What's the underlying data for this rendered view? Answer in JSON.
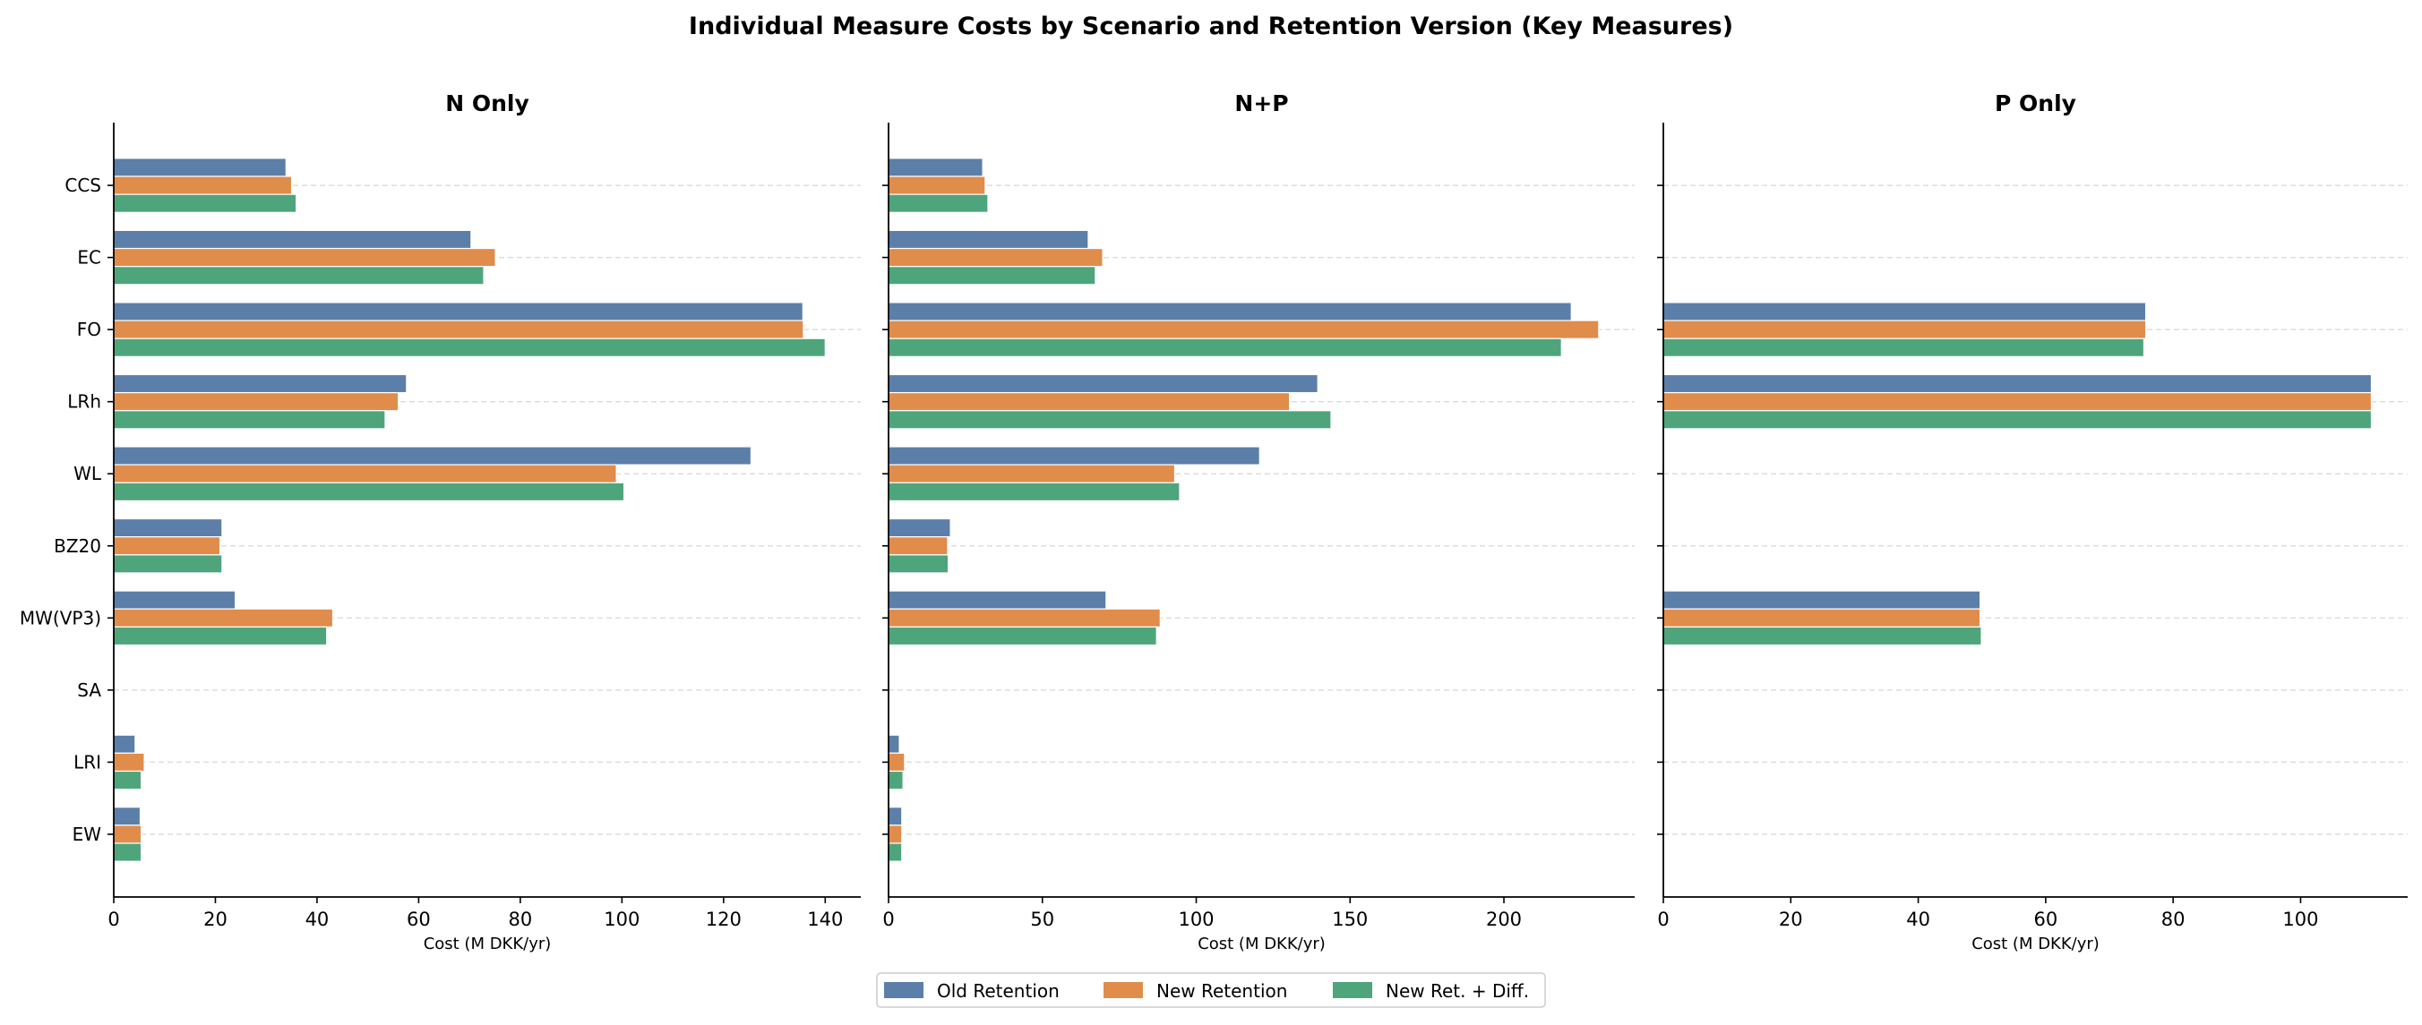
{
  "chart_data": {
    "type": "bar",
    "orientation": "horizontal",
    "title": "Individual Measure Costs by Scenario and Retention Version (Key Measures)",
    "categories": [
      "CCS",
      "EC",
      "FO",
      "LRh",
      "WL",
      "BZ20",
      "MW(VP3)",
      "SA",
      "LRI",
      "EW"
    ],
    "legend": {
      "placement": "bottom-center",
      "entries": [
        "Old Retention",
        "New Retention",
        "New Ret. + Diff."
      ]
    },
    "colors": [
      "#5b7fa8",
      "#e08c4b",
      "#4ea57c"
    ],
    "grid": "horizontal dashed at category ticks",
    "panels": [
      {
        "title": "N Only",
        "xlabel": "Cost (M DKK/yr)",
        "xlim": [
          0,
          147
        ],
        "xticks": [
          0,
          20,
          40,
          60,
          80,
          100,
          120,
          140
        ],
        "series": [
          {
            "name": "Old Retention",
            "values": [
              33.9,
              70.3,
              135.6,
              57.6,
              125.4,
              21.3,
              23.9,
              0,
              4.2,
              5.2
            ]
          },
          {
            "name": "New Retention",
            "values": [
              35.0,
              75.1,
              135.7,
              56.0,
              98.9,
              20.9,
              43.1,
              0,
              6.0,
              5.4
            ]
          },
          {
            "name": "New Ret. + Diff.",
            "values": [
              35.9,
              72.8,
              140.0,
              53.4,
              100.4,
              21.3,
              41.9,
              0.2,
              5.4,
              5.4
            ]
          }
        ]
      },
      {
        "title": "N+P",
        "xlabel": "Cost (M DKK/yr)",
        "xlim": [
          0,
          242.5
        ],
        "xticks": [
          0,
          50,
          100,
          150,
          200
        ],
        "series": [
          {
            "name": "Old Retention",
            "values": [
              30.6,
              64.9,
              221.9,
              139.5,
              120.6,
              20.1,
              70.7,
              0,
              3.5,
              4.3
            ]
          },
          {
            "name": "New Retention",
            "values": [
              31.4,
              69.6,
              230.8,
              130.3,
              93.0,
              19.2,
              88.3,
              0,
              5.2,
              4.3
            ]
          },
          {
            "name": "New Ret. + Diff.",
            "values": [
              32.3,
              67.2,
              218.7,
              143.8,
              94.6,
              19.4,
              87.1,
              0,
              4.7,
              4.3
            ]
          }
        ]
      },
      {
        "title": "P Only",
        "xlabel": "Cost (M DKK/yr)",
        "xlim": [
          0,
          116.8
        ],
        "xticks": [
          0,
          20,
          40,
          60,
          80,
          100
        ],
        "series": [
          {
            "name": "Old Retention",
            "values": [
              0,
              0,
              75.7,
              111.1,
              0,
              0,
              49.7,
              0,
              0,
              0
            ]
          },
          {
            "name": "New Retention",
            "values": [
              0,
              0,
              75.7,
              111.1,
              0,
              0,
              49.7,
              0,
              0,
              0
            ]
          },
          {
            "name": "New Ret. + Diff.",
            "values": [
              0,
              0,
              75.4,
              111.1,
              0,
              0,
              49.9,
              0,
              0,
              0
            ]
          }
        ]
      }
    ]
  }
}
